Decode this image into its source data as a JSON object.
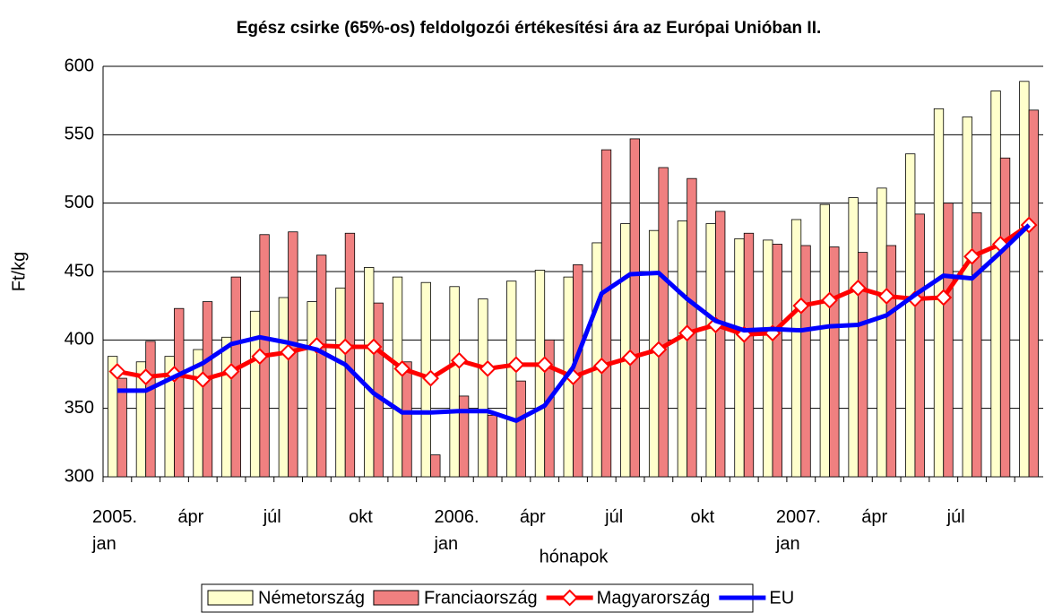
{
  "chart_data": {
    "type": "bar-line",
    "title": "Egész csirke (65%-os) feldolgozói értékesítési ára az Európai Unióban II.",
    "y_label": "Ft/kg",
    "x_label": "hónapok",
    "categories": [
      "2005.\njan",
      null,
      null,
      "ápr",
      null,
      null,
      "júl",
      null,
      null,
      "okt",
      null,
      null,
      "2006.\njan",
      null,
      null,
      "ápr",
      null,
      null,
      "júl",
      null,
      null,
      "okt",
      null,
      null,
      "2007.\njan",
      null,
      null,
      "ápr",
      null,
      null,
      "júl",
      null,
      null
    ],
    "series": [
      {
        "name": "Németország",
        "type": "bar",
        "color": "#ffffcc",
        "values": [
          388,
          384,
          388,
          393,
          402,
          421,
          431,
          428,
          438,
          453,
          446,
          442,
          439,
          430,
          443,
          451,
          446,
          471,
          485,
          480,
          487,
          485,
          474,
          473,
          488,
          499,
          504,
          511,
          536,
          569,
          563,
          582,
          589
        ]
      },
      {
        "name": "Franciaország",
        "type": "bar",
        "color": "#f08080",
        "values": [
          372,
          399,
          423,
          428,
          446,
          477,
          479,
          462,
          478,
          427,
          384,
          316,
          359,
          345,
          370,
          400,
          455,
          539,
          547,
          526,
          518,
          494,
          478,
          470,
          469,
          468,
          464,
          469,
          492,
          500,
          493,
          533,
          568
        ]
      },
      {
        "name": "Magyarország",
        "type": "line",
        "color": "#ff0000",
        "marker": "diamond",
        "values": [
          377,
          373,
          375,
          371,
          377,
          388,
          391,
          396,
          395,
          395,
          379,
          372,
          385,
          379,
          382,
          382,
          373,
          381,
          387,
          393,
          405,
          411,
          404,
          405,
          425,
          429,
          438,
          432,
          430,
          431,
          461,
          470,
          484
        ]
      },
      {
        "name": "EU",
        "type": "line",
        "color": "#0000ff",
        "values": [
          363,
          363,
          373,
          383,
          397,
          402,
          398,
          393,
          382,
          361,
          347,
          347,
          348,
          348,
          341,
          352,
          380,
          434,
          448,
          449,
          430,
          414,
          407,
          408,
          407,
          410,
          411,
          418,
          433,
          447,
          445,
          464,
          484
        ]
      }
    ],
    "ylim": [
      300,
      600
    ],
    "yticks": [
      300,
      350,
      400,
      450,
      500,
      550,
      600
    ],
    "grid": true,
    "legend": "bottom"
  }
}
